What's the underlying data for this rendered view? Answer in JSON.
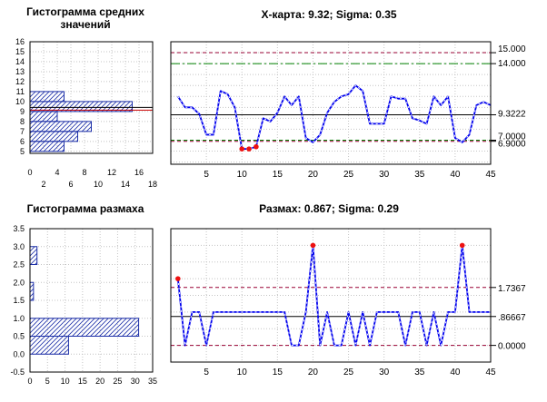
{
  "chart_data": [
    {
      "type": "bar",
      "orientation": "horizontal",
      "title_lines": [
        "Гистограмма средних",
        "значений"
      ],
      "categories": [
        5.5,
        6.5,
        7.5,
        8.5,
        9.5,
        10.5,
        11.5
      ],
      "values": [
        5,
        7,
        9,
        4,
        15,
        5,
        0
      ],
      "xlim": [
        0,
        18
      ],
      "ylim": [
        4.8,
        16
      ],
      "x_ticks_top": [
        "0",
        "4",
        "8",
        "12",
        "16"
      ],
      "x_ticks_bottom": [
        "2",
        "6",
        "10",
        "14",
        "18"
      ],
      "y_ticks": [
        "5",
        "6",
        "7",
        "8",
        "9",
        "10",
        "11",
        "12",
        "13",
        "14",
        "15",
        "16"
      ],
      "reference_lines": [
        9.3222,
        9.3222
      ],
      "colors": {
        "bar_edge": "#1c2fa8",
        "hatch": "#1c2fa8",
        "center": "#000000",
        "limit": "#cc0000"
      }
    },
    {
      "type": "line",
      "title": "X-карта: 9.32; Sigma: 0.35",
      "x": [
        1,
        2,
        3,
        4,
        5,
        6,
        7,
        8,
        9,
        10,
        11,
        12,
        13,
        14,
        15,
        16,
        17,
        18,
        19,
        20,
        21,
        22,
        23,
        24,
        25,
        26,
        27,
        28,
        29,
        30,
        31,
        32,
        33,
        34,
        35,
        36,
        37,
        38,
        39,
        40,
        41,
        42,
        43,
        44,
        45
      ],
      "y": [
        11,
        10,
        10,
        9.4,
        7.5,
        7.5,
        11.5,
        11.2,
        10,
        6.2,
        6.2,
        6.4,
        9,
        8.7,
        9.5,
        11,
        10.2,
        11,
        7.2,
        6.8,
        7.5,
        9.5,
        10.5,
        11,
        11.2,
        12,
        11.5,
        8.5,
        8.5,
        8.5,
        11,
        10.8,
        10.8,
        9,
        8.8,
        8.5,
        11,
        10.2,
        11,
        7.2,
        6.8,
        7.5,
        10.2,
        10.5,
        10.2
      ],
      "out_of_control_points": [
        10,
        11,
        12
      ],
      "xlim": [
        0,
        45
      ],
      "ylim": [
        4.8,
        16
      ],
      "x_ticks": [
        "5",
        "10",
        "15",
        "20",
        "25",
        "30",
        "35",
        "40",
        "45"
      ],
      "right_labels": [
        "15.000",
        "14.000",
        "9.3222",
        "7.0000",
        "6.9000"
      ],
      "lines": {
        "ucl": 15.0,
        "uwl": 14.0,
        "center": 9.3222,
        "lwl": 7.0,
        "lcl": 6.9
      },
      "colors": {
        "series": "#0000ee",
        "marker": "#ee1111",
        "center": "#000000",
        "control_limit": "#990033",
        "warning_limit": "#008000"
      }
    },
    {
      "type": "bar",
      "orientation": "horizontal",
      "title": "Гистограмма размаха",
      "categories": [
        0.25,
        0.75,
        1.25,
        1.75,
        2.25,
        2.75
      ],
      "values": [
        11,
        31,
        0,
        1,
        0,
        2
      ],
      "xlim": [
        0,
        35
      ],
      "ylim": [
        -0.5,
        3.5
      ],
      "x_ticks": [
        "0",
        "5",
        "10",
        "15",
        "20",
        "25",
        "30",
        "35"
      ],
      "y_ticks": [
        "-0.5",
        "0.0",
        "0.5",
        "1.0",
        "1.5",
        "2.0",
        "2.5",
        "3.0",
        "3.5"
      ],
      "colors": {
        "bar_edge": "#1c2fa8",
        "hatch": "#1c2fa8"
      }
    },
    {
      "type": "line",
      "title": "Размах: 0.867; Sigma: 0.29",
      "x": [
        1,
        2,
        3,
        4,
        5,
        6,
        7,
        8,
        9,
        10,
        11,
        12,
        13,
        14,
        15,
        16,
        17,
        18,
        19,
        20,
        21,
        22,
        23,
        24,
        25,
        26,
        27,
        28,
        29,
        30,
        31,
        32,
        33,
        34,
        35,
        36,
        37,
        38,
        39,
        40,
        41,
        42,
        43,
        44,
        45
      ],
      "y": [
        2,
        0,
        1,
        1,
        0,
        1,
        1,
        1,
        1,
        1,
        1,
        1,
        1,
        1,
        1,
        1,
        0,
        0,
        1,
        3,
        0,
        1,
        0,
        0,
        1,
        0,
        1,
        0,
        1,
        1,
        1,
        1,
        0,
        1,
        1,
        0,
        1,
        0,
        1,
        1,
        3,
        1,
        1,
        1,
        1
      ],
      "out_of_control_points": [
        1,
        20,
        41
      ],
      "xlim": [
        0,
        45
      ],
      "ylim": [
        -0.5,
        3.5
      ],
      "x_ticks": [
        "5",
        "10",
        "15",
        "20",
        "25",
        "30",
        "35",
        "40",
        "45"
      ],
      "right_labels": [
        "1.7367",
        ".86667",
        "0.0000"
      ],
      "lines": {
        "ucl": 1.7367,
        "center": 0.86667,
        "lcl": 0.0
      },
      "colors": {
        "series": "#0000ee",
        "marker": "#ee1111",
        "center": "#000000",
        "control_limit": "#990033"
      }
    }
  ]
}
